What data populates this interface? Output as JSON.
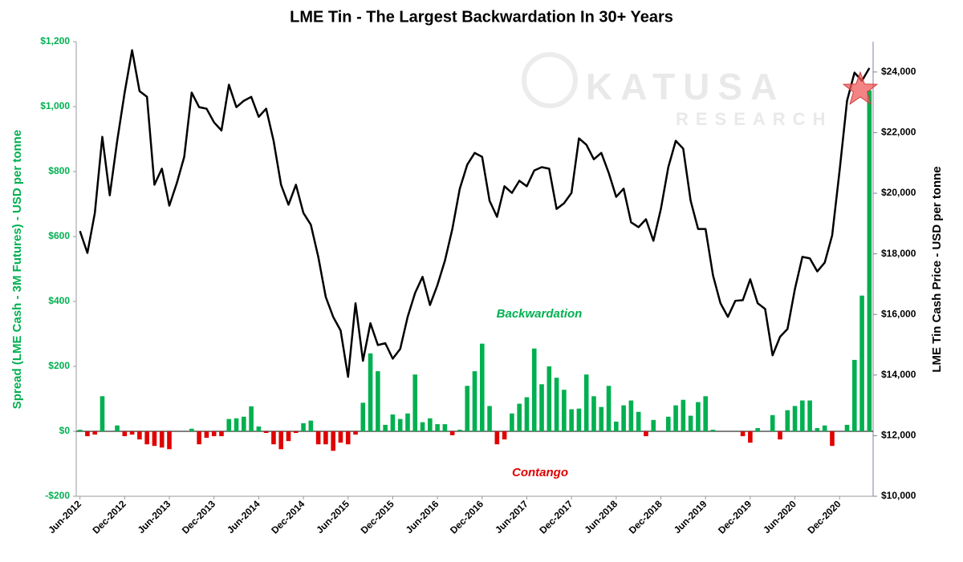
{
  "chart_data": {
    "type": "bar",
    "title": "LME Tin - The Largest Backwardation In 30+ Years",
    "y_label": "Spread (LME Cash - 3M Futures) - USD per tonne",
    "y2_label": "LME Tin Cash Price - USD per tonne",
    "annotations": [
      "Backwardation",
      "Contango"
    ],
    "watermark_title": "KATUSA",
    "watermark_subtitle": "RESEARCH",
    "categories": [
      "Jun-2012",
      null,
      null,
      null,
      null,
      null,
      "Dec-2012",
      null,
      null,
      null,
      null,
      null,
      "Jun-2013",
      null,
      null,
      null,
      null,
      null,
      "Dec-2013",
      null,
      null,
      null,
      null,
      null,
      "Jun-2014",
      null,
      null,
      null,
      null,
      null,
      "Dec-2014",
      null,
      null,
      null,
      null,
      null,
      "Jun-2015",
      null,
      null,
      null,
      null,
      null,
      "Dec-2015",
      null,
      null,
      null,
      null,
      null,
      "Jun-2016",
      null,
      null,
      null,
      null,
      null,
      "Dec-2016",
      null,
      null,
      null,
      null,
      null,
      "Jun-2017",
      null,
      null,
      null,
      null,
      null,
      "Dec-2017",
      null,
      null,
      null,
      null,
      null,
      "Jun-2018",
      null,
      null,
      null,
      null,
      null,
      "Dec-2018",
      null,
      null,
      null,
      null,
      null,
      "Jun-2019",
      null,
      null,
      null,
      null,
      null,
      "Dec-2019",
      null,
      null,
      null,
      null,
      null,
      "Jun-2020",
      null,
      null,
      null,
      null,
      null,
      "Dec-2020",
      null,
      null,
      null,
      null
    ],
    "series": [
      {
        "type": "bar",
        "color": "#00b050",
        "negative_color": "#e00000",
        "values": [
          5,
          -15,
          -10,
          108,
          0,
          18,
          -15,
          -10,
          -25,
          -40,
          -45,
          -50,
          -55,
          0,
          0,
          8,
          -40,
          -20,
          -15,
          -15,
          38,
          40,
          45,
          77,
          15,
          -5,
          -40,
          -55,
          -30,
          -5,
          25,
          33,
          -40,
          -40,
          -60,
          -35,
          -40,
          -10,
          88,
          240,
          185,
          20,
          52,
          38,
          55,
          175,
          28,
          40,
          22,
          22,
          -12,
          5,
          140,
          185,
          270,
          78,
          -40,
          -25,
          55,
          85,
          105,
          255,
          145,
          200,
          165,
          128,
          68,
          70,
          175,
          108,
          75,
          140,
          30,
          80,
          95,
          60,
          -15,
          35,
          0,
          45,
          80,
          97,
          48,
          90,
          108,
          5,
          0,
          0,
          0,
          -15,
          -35,
          10,
          0,
          50,
          -25,
          65,
          78,
          95,
          95,
          10,
          18,
          -45,
          0,
          20,
          220,
          418,
          1050
        ]
      },
      {
        "type": "line",
        "color": "#000000",
        "axis": "y2",
        "values": [
          18750,
          18030,
          19350,
          21860,
          19930,
          21730,
          23320,
          24720,
          23370,
          23180,
          20280,
          20810,
          19590,
          20330,
          21200,
          23320,
          22840,
          22790,
          22340,
          22070,
          23580,
          22840,
          23050,
          23180,
          22520,
          22790,
          21730,
          20280,
          19620,
          20280,
          19350,
          18960,
          17900,
          16580,
          15920,
          15470,
          13940,
          16370,
          14470,
          15710,
          14990,
          15050,
          14540,
          14860,
          15920,
          16710,
          17240,
          16310,
          16970,
          17770,
          18820,
          20150,
          20940,
          21330,
          21200,
          19750,
          19220,
          20230,
          20010,
          20410,
          20230,
          20750,
          20860,
          20810,
          19480,
          19670,
          20010,
          21810,
          21600,
          21120,
          21330,
          20670,
          19880,
          20150,
          19040,
          18880,
          19140,
          18430,
          19480,
          20860,
          21730,
          21470,
          19750,
          18820,
          18820,
          17290,
          16370,
          15920,
          16450,
          16470,
          17160,
          16370,
          16180,
          14650,
          15260,
          15520,
          16840,
          17900,
          17850,
          17420,
          17710,
          18610,
          20750,
          23050,
          23980,
          23710,
          24130
        ]
      }
    ],
    "ylim": [
      -200,
      1200
    ],
    "yticks": [
      {
        "value": -200,
        "label": "-$200"
      },
      {
        "value": 0,
        "label": "$0"
      },
      {
        "value": 200,
        "label": "$200"
      },
      {
        "value": 400,
        "label": "$400"
      },
      {
        "value": 600,
        "label": "$600"
      },
      {
        "value": 800,
        "label": "$800"
      },
      {
        "value": 1000,
        "label": "$1,000"
      },
      {
        "value": 1200,
        "label": "$1,200"
      }
    ],
    "y2lim": [
      10000,
      25000
    ],
    "y2ticks": [
      {
        "value": 10000,
        "label": "$10,000"
      },
      {
        "value": 12000,
        "label": "$12,000"
      },
      {
        "value": 14000,
        "label": "$14,000"
      },
      {
        "value": 16000,
        "label": "$16,000"
      },
      {
        "value": 18000,
        "label": "$18,000"
      },
      {
        "value": 20000,
        "label": "$20,000"
      },
      {
        "value": 22000,
        "label": "$22,000"
      },
      {
        "value": 24000,
        "label": "$24,000"
      }
    ],
    "grid": false
  }
}
